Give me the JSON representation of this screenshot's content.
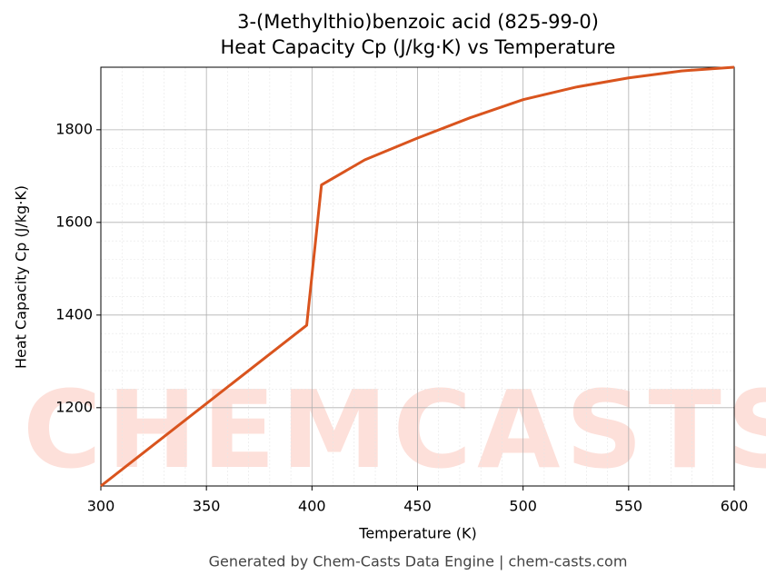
{
  "chart_data": {
    "type": "line",
    "title": "3-(Methylthio)benzoic acid (825-99-0)",
    "subtitle": "Heat Capacity Cp (J/kg·K) vs Temperature",
    "x_label": "Temperature (K)",
    "y_label": "Heat Capacity Cp (J/kg·K)",
    "footer": "Generated by Chem-Casts Data Engine | chem-casts.com",
    "watermark": "CHEMCASTS",
    "x": [
      300,
      397.5,
      404.5,
      425,
      450,
      475,
      500,
      525,
      550,
      575,
      600
    ],
    "series": [
      {
        "name": "Cp",
        "color": "#d9541e",
        "values": [
          1031,
          1378,
          1681,
          1735,
          1782,
          1826,
          1865,
          1892,
          1912,
          1927,
          1935
        ]
      }
    ],
    "xlim": [
      300,
      600
    ],
    "xticks": [
      300,
      350,
      400,
      450,
      500,
      550,
      600
    ],
    "ylim": [
      1031,
      1935
    ],
    "yticks": [
      1200,
      1400,
      1600,
      1800
    ],
    "grid": true
  }
}
